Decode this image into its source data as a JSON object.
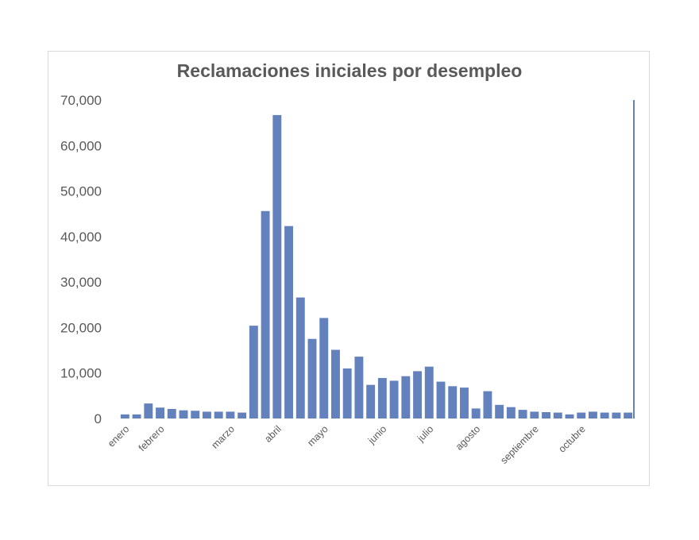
{
  "chart_data": {
    "type": "bar",
    "title": "Reclamaciones iniciales por desempleo",
    "xlabel": "",
    "ylabel": "",
    "ylim": [
      0,
      70000
    ],
    "yticks": [
      0,
      10000,
      20000,
      30000,
      40000,
      50000,
      60000,
      70000
    ],
    "ytick_labels": [
      "0",
      "10,000",
      "20,000",
      "30,000",
      "40,000",
      "50,000",
      "60,000",
      "70,000"
    ],
    "month_labels": [
      {
        "label": "enero",
        "index": 0
      },
      {
        "label": "febrero",
        "index": 3
      },
      {
        "label": "marzo",
        "index": 9
      },
      {
        "label": "abril",
        "index": 13
      },
      {
        "label": "mayo",
        "index": 17
      },
      {
        "label": "junio",
        "index": 22
      },
      {
        "label": "julio",
        "index": 26
      },
      {
        "label": "agosto",
        "index": 30
      },
      {
        "label": "septiembre",
        "index": 35
      },
      {
        "label": "octubre",
        "index": 39
      }
    ],
    "values": [
      900,
      900,
      3300,
      2400,
      2100,
      1800,
      1700,
      1500,
      1500,
      1500,
      1300,
      20400,
      45600,
      66700,
      42300,
      26600,
      17500,
      22100,
      15100,
      11000,
      13600,
      7400,
      8900,
      8300,
      9300,
      10400,
      11400,
      8100,
      7100,
      6800,
      2200,
      6000,
      3000,
      2500,
      1900,
      1500,
      1400,
      1300,
      900,
      1300,
      1500,
      1300,
      1300,
      1300
    ],
    "grid": false,
    "legend": "none",
    "bar_color": "#6281bd"
  }
}
